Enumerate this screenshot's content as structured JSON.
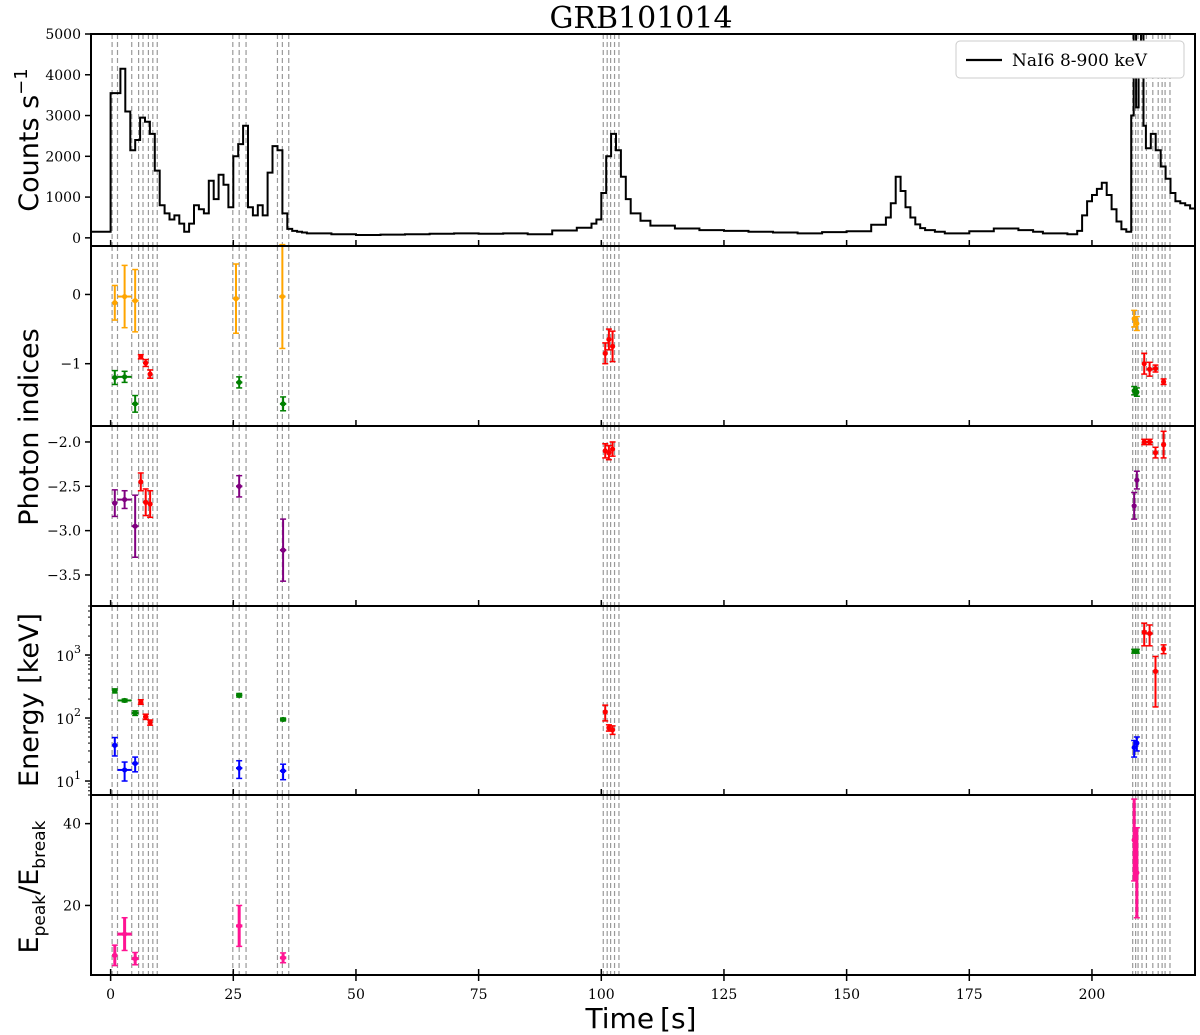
{
  "chart_data": {
    "type": "scatter",
    "title": "GRB101014",
    "xlabel": "Time",
    "xlabel_unit": "[s]",
    "xlim": [
      -4,
      221
    ],
    "xticks": [
      0,
      25,
      50,
      75,
      100,
      125,
      150,
      175,
      200
    ],
    "boundaries": [
      0.3,
      1.4,
      4.3,
      5.7,
      6.6,
      7.7,
      8.6,
      9.5,
      24.9,
      26.2,
      27.6,
      34.0,
      35.0,
      36.3,
      100.4,
      101.2,
      101.9,
      102.7,
      103.6,
      208.3,
      208.9,
      209.4,
      210.2,
      211.1,
      212.4,
      213.5,
      214.3,
      214.9,
      215.9
    ],
    "panels": [
      {
        "id": "lightcurve",
        "ylabel": "Counts s⁻¹",
        "ylabel_base": "Counts s",
        "ylabel_sup": "−1",
        "ylim": [
          -200,
          5000
        ],
        "yticks": [
          0,
          1000,
          2000,
          3000,
          4000,
          5000
        ],
        "legend": "NaI6 8-900 keV",
        "legend_loc": "upper right",
        "lc": {
          "t": [
            -4,
            -1,
            0,
            1,
            2,
            3,
            4,
            5,
            6,
            7,
            8,
            9,
            10,
            11,
            12,
            13,
            14,
            15,
            16,
            17,
            18,
            19,
            20,
            21,
            22,
            23,
            24,
            25,
            26,
            27,
            28,
            29,
            30,
            31,
            32,
            33,
            34,
            35,
            36,
            37,
            38,
            39,
            40,
            45,
            50,
            55,
            60,
            65,
            70,
            75,
            80,
            85,
            90,
            95,
            98,
            99,
            100,
            101,
            102,
            103,
            104,
            105,
            106,
            108,
            110,
            115,
            120,
            125,
            130,
            135,
            140,
            145,
            150,
            155,
            158,
            159,
            160,
            161,
            162,
            163,
            164,
            165,
            166,
            168,
            170,
            175,
            180,
            185,
            188,
            190,
            195,
            197,
            198,
            199,
            200,
            201,
            202,
            203,
            204,
            205,
            206,
            207,
            208,
            208.5,
            209,
            209.5,
            210,
            210.5,
            211,
            212,
            213,
            214,
            215,
            216,
            217,
            218,
            219,
            220,
            221
          ],
          "counts": [
            150,
            150,
            3550,
            3550,
            4150,
            3100,
            2150,
            2400,
            2950,
            2850,
            2550,
            1650,
            800,
            600,
            450,
            550,
            350,
            150,
            350,
            800,
            700,
            600,
            1400,
            950,
            1550,
            1300,
            750,
            2000,
            2300,
            2750,
            750,
            550,
            800,
            550,
            1600,
            2250,
            2150,
            600,
            220,
            170,
            150,
            130,
            110,
            90,
            70,
            80,
            90,
            100,
            110,
            100,
            110,
            90,
            180,
            250,
            350,
            450,
            1100,
            2000,
            2550,
            2150,
            1500,
            950,
            600,
            420,
            300,
            230,
            190,
            170,
            150,
            130,
            110,
            140,
            160,
            320,
            500,
            850,
            1500,
            1150,
            750,
            500,
            330,
            240,
            190,
            150,
            110,
            160,
            230,
            190,
            150,
            110,
            90,
            170,
            550,
            900,
            1050,
            1200,
            1350,
            1050,
            700,
            400,
            210,
            150,
            3000,
            5000,
            3200,
            4200,
            5200,
            2750,
            2200,
            2550,
            2150,
            1750,
            1450,
            1100,
            900,
            850,
            800,
            720,
            650
          ]
        }
      },
      {
        "id": "alpha",
        "ylabel": "",
        "ylim": [
          -1.9,
          0.7
        ],
        "yticks": [
          0,
          -1
        ],
        "series": [
          {
            "color": "#ffa500",
            "points": [
              [
                0.85,
                -0.12,
                0.55,
                0.25,
                0.25
              ],
              [
                2.85,
                -0.03,
                1.45,
                0.45,
                0.45
              ],
              [
                5.0,
                -0.09,
                0.7,
                0.45,
                0.45
              ],
              [
                25.55,
                -0.06,
                0.65,
                0.5,
                0.5
              ],
              [
                35.0,
                -0.03,
                0.65,
                0.75,
                0.75
              ],
              [
                208.6,
                -0.35,
                0.3,
                0.12,
                0.12
              ],
              [
                209.15,
                -0.42,
                0.25,
                0.1,
                0.1
              ]
            ]
          },
          {
            "color": "#008000",
            "points": [
              [
                0.85,
                -1.2,
                0.55,
                0.1,
                0.1
              ],
              [
                2.85,
                -1.19,
                1.45,
                0.08,
                0.08
              ],
              [
                5.0,
                -1.58,
                0.7,
                0.12,
                0.12
              ],
              [
                26.2,
                -1.27,
                0.65,
                0.08,
                0.08
              ],
              [
                35.15,
                -1.58,
                0.65,
                0.1,
                0.1
              ],
              [
                208.6,
                -1.39,
                0.3,
                0.06,
                0.06
              ],
              [
                209.15,
                -1.41,
                0.25,
                0.06,
                0.06
              ]
            ]
          },
          {
            "color": "#ff0000",
            "points": [
              [
                6.15,
                -0.9,
                0.45,
                0.03,
                0.03
              ],
              [
                7.15,
                -0.99,
                0.55,
                0.05,
                0.05
              ],
              [
                8.05,
                -1.15,
                0.45,
                0.06,
                0.06
              ],
              [
                100.8,
                -0.85,
                0.4,
                0.15,
                0.15
              ],
              [
                101.55,
                -0.65,
                0.35,
                0.15,
                0.15
              ],
              [
                102.3,
                -0.75,
                0.4,
                0.22,
                0.22
              ],
              [
                210.65,
                -1.0,
                0.45,
                0.15,
                0.15
              ],
              [
                211.75,
                -1.08,
                0.65,
                0.1,
                0.1
              ],
              [
                212.95,
                -1.07,
                0.55,
                0.05,
                0.05
              ],
              [
                214.6,
                -1.26,
                0.3,
                0.04,
                0.04
              ]
            ]
          }
        ]
      },
      {
        "id": "beta",
        "ylabel": "Photon indices",
        "ylim": [
          -3.85,
          -1.82
        ],
        "yticks": [
          -2.0,
          -2.5,
          -3.0,
          -3.5
        ],
        "series": [
          {
            "color": "#800080",
            "points": [
              [
                0.85,
                -2.69,
                0.55,
                0.15,
                0.15
              ],
              [
                2.85,
                -2.65,
                1.45,
                0.1,
                0.1
              ],
              [
                5.0,
                -2.95,
                0.7,
                0.35,
                0.35
              ],
              [
                26.2,
                -2.5,
                0.65,
                0.12,
                0.12
              ],
              [
                35.15,
                -3.22,
                0.65,
                0.35,
                0.35
              ],
              [
                208.6,
                -2.72,
                0.3,
                0.15,
                0.15
              ],
              [
                209.15,
                -2.43,
                0.25,
                0.1,
                0.1
              ]
            ]
          },
          {
            "color": "#ff0000",
            "points": [
              [
                6.15,
                -2.45,
                0.45,
                0.1,
                0.1
              ],
              [
                7.15,
                -2.68,
                0.55,
                0.15,
                0.15
              ],
              [
                8.05,
                -2.7,
                0.45,
                0.15,
                0.15
              ],
              [
                100.8,
                -2.1,
                0.4,
                0.08,
                0.08
              ],
              [
                101.55,
                -2.12,
                0.35,
                0.08,
                0.08
              ],
              [
                102.3,
                -2.08,
                0.4,
                0.08,
                0.08
              ],
              [
                210.65,
                -2.0,
                0.45,
                0.03,
                0.03
              ],
              [
                211.75,
                -2.0,
                0.65,
                0.03,
                0.03
              ],
              [
                212.95,
                -2.12,
                0.55,
                0.06,
                0.06
              ],
              [
                214.6,
                -2.03,
                0.3,
                0.15,
                0.15
              ]
            ]
          }
        ]
      },
      {
        "id": "energy",
        "ylabel": "Energy [keV]",
        "ylog": true,
        "ylim": [
          6,
          6000
        ],
        "yticks": [
          10,
          100,
          1000
        ],
        "series": [
          {
            "color": "#008000",
            "points": [
              [
                0.85,
                270,
                0.55,
                20,
                20
              ],
              [
                2.85,
                190,
                1.45,
                10,
                10
              ],
              [
                5.0,
                120,
                0.7,
                10,
                10
              ],
              [
                26.2,
                230,
                0.65,
                15,
                15
              ],
              [
                35.15,
                95,
                0.65,
                5,
                5
              ],
              [
                208.6,
                1150,
                0.3,
                80,
                80
              ],
              [
                209.15,
                1150,
                0.25,
                80,
                80
              ]
            ]
          },
          {
            "color": "#ff0000",
            "points": [
              [
                6.15,
                180,
                0.45,
                15,
                15
              ],
              [
                7.15,
                105,
                0.55,
                10,
                10
              ],
              [
                8.05,
                85,
                0.45,
                8,
                8
              ],
              [
                100.8,
                125,
                0.4,
                35,
                35
              ],
              [
                101.55,
                70,
                0.35,
                8,
                8
              ],
              [
                102.3,
                65,
                0.4,
                10,
                10
              ],
              [
                210.65,
                2300,
                0.45,
                900,
                900
              ],
              [
                211.75,
                2200,
                0.65,
                800,
                800
              ],
              [
                212.95,
                550,
                0.55,
                400,
                400
              ],
              [
                214.6,
                1250,
                0.3,
                200,
                200
              ]
            ]
          },
          {
            "color": "#0000ff",
            "points": [
              [
                0.85,
                37,
                0.55,
                12,
                12
              ],
              [
                2.85,
                15,
                1.45,
                5,
                5
              ],
              [
                5.0,
                19,
                0.7,
                5,
                5
              ],
              [
                26.2,
                16,
                0.65,
                5,
                5
              ],
              [
                35.15,
                14.5,
                0.65,
                4,
                4
              ],
              [
                208.6,
                34,
                0.3,
                10,
                10
              ],
              [
                209.15,
                40,
                0.25,
                10,
                10
              ]
            ]
          }
        ]
      },
      {
        "id": "ratio",
        "ylabel": "Epeak/Ebreak",
        "ylabel_base": "E",
        "ylabel_sub1": "peak",
        "ylabel_mid": "/E",
        "ylabel_sub2": "break",
        "ylim": [
          3,
          47
        ],
        "yticks": [
          20,
          40
        ],
        "series": [
          {
            "color": "#ff1493",
            "points": [
              [
                0.85,
                7.8,
                0.55,
                2.5,
                2.5
              ],
              [
                2.85,
                13.0,
                1.45,
                4.0,
                4.0
              ],
              [
                5.0,
                7.0,
                0.7,
                1.5,
                1.5
              ],
              [
                26.2,
                15.0,
                0.65,
                5.0,
                5.0
              ],
              [
                35.15,
                7.2,
                0.65,
                1.2,
                1.2
              ],
              [
                208.6,
                36.0,
                0.3,
                10.0,
                10.0
              ],
              [
                209.15,
                28.0,
                0.25,
                11.0,
                11.0
              ]
            ]
          }
        ]
      }
    ]
  }
}
